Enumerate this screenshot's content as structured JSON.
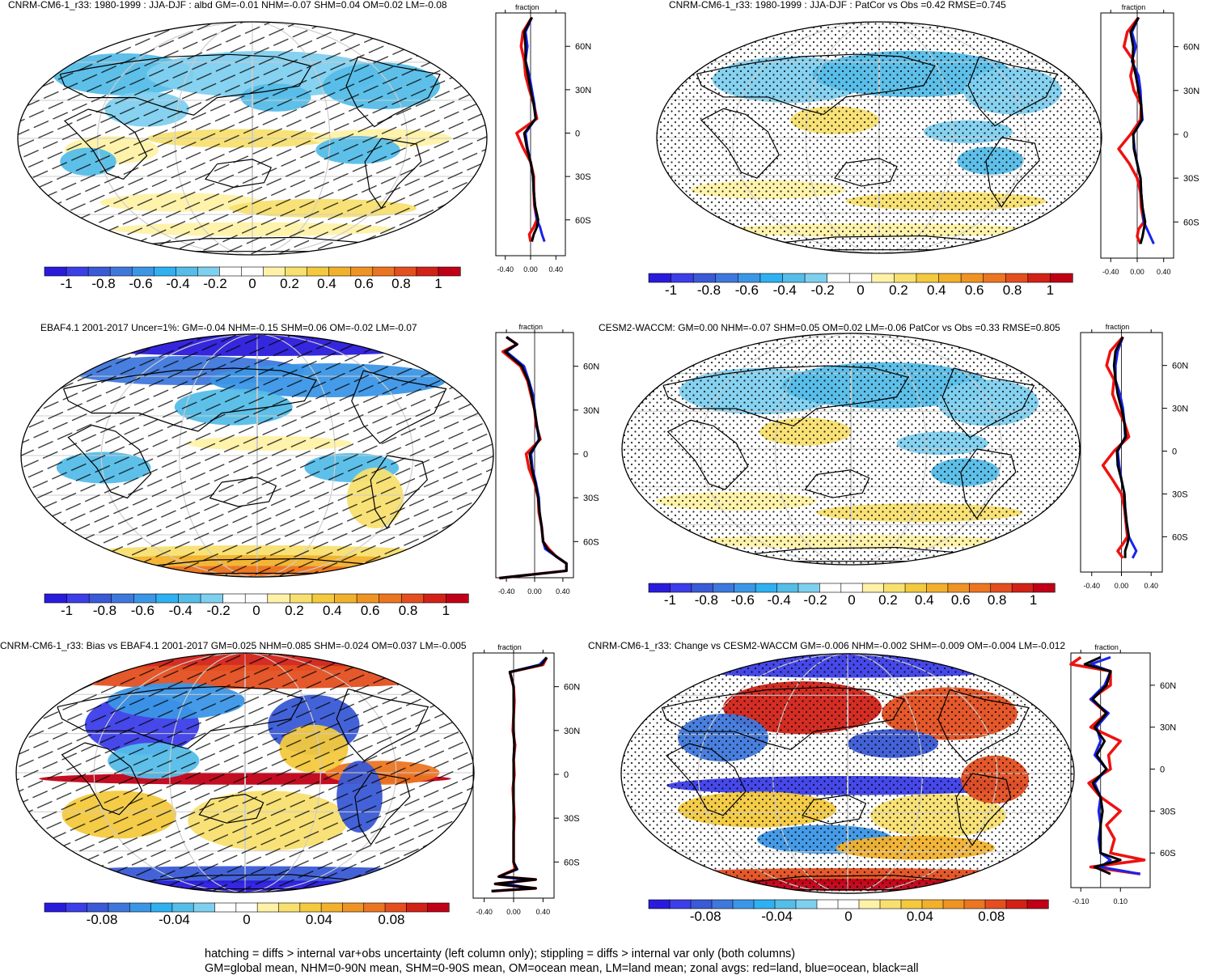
{
  "palette": [
    "#2a1bdc",
    "#3c3ee8",
    "#3a5ad6",
    "#3f78dc",
    "#3b96e6",
    "#2fb0f0",
    "#55bde8",
    "#7fd0ef",
    "#ffffff",
    "#ffffff",
    "#fff2a8",
    "#f8e070",
    "#f3c93e",
    "#f2b12d",
    "#ef9424",
    "#ec7522",
    "#e44f20",
    "#d22218",
    "#c00016"
  ],
  "colorbar_ticks_main": [
    "-1",
    "-0.8",
    "-0.6",
    "-0.4",
    "-0.2",
    "0",
    "0.2",
    "0.4",
    "0.6",
    "0.8",
    "1"
  ],
  "colorbar_ticks_diff": [
    "-0.08",
    "-0.04",
    "0",
    "0.04",
    "0.08"
  ],
  "zonal_colors": {
    "land": "#ee1111",
    "ocean": "#1a22ee",
    "all": "#000000"
  },
  "caption": {
    "line1": "hatching = diffs > internal var+obs uncertainty (left column only); stippling = diffs > internal var only (both columns)",
    "line2": "GM=global mean, NHM=0-90N mean, SHM=0-90S mean, OM=ocean mean, LM=land mean; zonal avgs: red=land, blue=ocean, black=all"
  },
  "chart_data": [
    {
      "type": "heatmap",
      "title": "CNRM-CM6-1_r33: 1980-1999 : JJA-DJF : albd GM=-0.01 NHM=-0.07 SHM=0.04 OM=0.02 LM=-0.08",
      "overlay": "hatching",
      "colorbar_ticks": "main",
      "colorbar_range": [
        -1,
        1
      ],
      "zonal_avg": {
        "title": "fraction",
        "xticks": [
          "-0.40",
          "0.00",
          "0.40"
        ],
        "xlim": [
          -0.55,
          0.55
        ],
        "yticks": [
          "60N",
          "30N",
          "0",
          "30S",
          "60S"
        ],
        "lat": [
          80,
          70,
          60,
          50,
          40,
          30,
          20,
          10,
          0,
          -10,
          -20,
          -30,
          -40,
          -50,
          -60,
          -65,
          -70,
          -75
        ],
        "land": [
          0.02,
          -0.12,
          -0.15,
          -0.1,
          -0.08,
          -0.02,
          0.05,
          0.1,
          -0.22,
          -0.12,
          0,
          0.05,
          0.05,
          0.06,
          0.1,
          0.05,
          -0.02,
          0.0
        ],
        "ocean": [
          0.02,
          -0.08,
          -0.05,
          -0.08,
          -0.02,
          0.02,
          0.06,
          0.08,
          -0.08,
          -0.05,
          0,
          0.04,
          0.05,
          0.07,
          0.1,
          0.15,
          0.18,
          0.22
        ],
        "all": [
          0.02,
          -0.1,
          -0.08,
          -0.08,
          -0.04,
          0.0,
          0.05,
          0.08,
          -0.1,
          -0.06,
          0,
          0.04,
          0.05,
          0.07,
          0.12,
          0.1,
          0.05,
          0.02
        ]
      }
    },
    {
      "type": "heatmap",
      "title": "CNRM-CM6-1_r33: 1980-1999 : JJA-DJF : PatCor vs Obs =0.42 RMSE=0.745",
      "overlay": "stippling",
      "colorbar_ticks": "main",
      "colorbar_range": [
        -1,
        1
      ],
      "zonal_avg": {
        "title": "fraction",
        "xticks": [
          "-0.40",
          "0.00",
          "0.40"
        ],
        "xlim": [
          -0.55,
          0.55
        ],
        "yticks": [
          "60N",
          "30N",
          "0",
          "30S",
          "60S"
        ],
        "lat": [
          80,
          70,
          60,
          50,
          40,
          30,
          20,
          10,
          0,
          -10,
          -20,
          -30,
          -40,
          -50,
          -60,
          -65,
          -70,
          -75
        ],
        "land": [
          0.02,
          -0.15,
          -0.2,
          -0.05,
          -0.1,
          -0.05,
          0.06,
          0.05,
          -0.1,
          -0.28,
          -0.12,
          0,
          0.05,
          0.06,
          0.1,
          0.02,
          0.0,
          0.05
        ],
        "ocean": [
          0.02,
          -0.08,
          -0.02,
          -0.08,
          0.02,
          0.05,
          0.06,
          0.08,
          -0.06,
          -0.04,
          0,
          0.05,
          0.06,
          0.08,
          0.1,
          0.15,
          0.2,
          0.25
        ],
        "all": [
          0.02,
          -0.1,
          -0.06,
          -0.07,
          -0.02,
          0.02,
          0.06,
          0.07,
          -0.06,
          -0.05,
          0,
          0.05,
          0.06,
          0.08,
          0.12,
          0.1,
          0.08,
          0.05
        ]
      }
    },
    {
      "type": "heatmap",
      "title": "EBAF4.1 2001-2017 Uncer=1%: GM=-0.04 NHM=-0.15 SHM=0.06 OM=-0.02 LM=-0.07",
      "overlay": "hatching",
      "colorbar_ticks": "main",
      "colorbar_range": [
        -1,
        1
      ],
      "zonal_avg": {
        "title": "fraction",
        "xticks": [
          "-0.40",
          "0.00",
          "0.40"
        ],
        "xlim": [
          -0.55,
          0.55
        ],
        "yticks": [
          "60N",
          "30N",
          "0",
          "30S",
          "60S"
        ],
        "lat": [
          80,
          75,
          70,
          60,
          50,
          40,
          30,
          20,
          10,
          0,
          -10,
          -20,
          -30,
          -40,
          -50,
          -60,
          -65,
          -70,
          -75,
          -80,
          -85
        ],
        "land": [
          -0.4,
          -0.25,
          -0.45,
          -0.2,
          -0.1,
          -0.05,
          0,
          0.02,
          0.08,
          -0.12,
          -0.08,
          0,
          0.05,
          0.06,
          0.1,
          0.12,
          0.2,
          0.3,
          0.45,
          0.45,
          -0.5
        ],
        "ocean": [
          -0.4,
          -0.25,
          -0.4,
          -0.15,
          -0.08,
          -0.02,
          0,
          0.03,
          0.06,
          -0.05,
          -0.03,
          0.02,
          0.06,
          0.07,
          0.1,
          0.12,
          0.15,
          0.3,
          0.45,
          0.45,
          -0.5
        ],
        "all": [
          -0.4,
          -0.25,
          -0.42,
          -0.18,
          -0.09,
          -0.04,
          0,
          0.03,
          0.07,
          -0.07,
          -0.04,
          0.01,
          0.05,
          0.07,
          0.1,
          0.12,
          0.18,
          0.3,
          0.45,
          0.45,
          -0.5
        ]
      }
    },
    {
      "type": "heatmap",
      "title": "CESM2-WACCM: GM=0.00 NHM=-0.07 SHM=0.05 OM=0.02 LM=-0.06 PatCor vs Obs =0.33 RMSE=0.805",
      "overlay": "stippling",
      "colorbar_ticks": "main",
      "colorbar_range": [
        -1,
        1
      ],
      "zonal_avg": {
        "title": "fraction",
        "xticks": [
          "-0.40",
          "0.00",
          "0.40"
        ],
        "xlim": [
          -0.55,
          0.55
        ],
        "yticks": [
          "60N",
          "30N",
          "0",
          "30S",
          "60S"
        ],
        "lat": [
          80,
          70,
          60,
          50,
          40,
          30,
          20,
          10,
          0,
          -10,
          -20,
          -30,
          -40,
          -50,
          -60,
          -65,
          -70,
          -75
        ],
        "land": [
          0.02,
          -0.15,
          -0.2,
          -0.1,
          -0.12,
          -0.05,
          0.04,
          0.1,
          -0.1,
          -0.25,
          -0.12,
          0,
          0.04,
          0.06,
          0.08,
          0.02,
          -0.05,
          0.02
        ],
        "ocean": [
          0.02,
          -0.05,
          -0.08,
          -0.08,
          -0.02,
          0.02,
          0.04,
          0.05,
          -0.05,
          -0.03,
          0,
          0.04,
          0.05,
          0.07,
          0.1,
          0.15,
          0.2,
          0.15
        ],
        "all": [
          0.02,
          -0.08,
          -0.1,
          -0.08,
          -0.05,
          0.0,
          0.04,
          0.06,
          -0.06,
          -0.05,
          0,
          0.04,
          0.05,
          0.07,
          0.1,
          0.08,
          0.05,
          0.05
        ]
      }
    },
    {
      "type": "heatmap",
      "title": "CNRM-CM6-1_r33: Bias vs EBAF4.1 2001-2017 GM=0.025 NHM=0.085 SHM=-0.024 OM=0.037 LM=-0.005",
      "overlay": "hatching",
      "colorbar_ticks": "diff",
      "colorbar_range": [
        -0.1,
        0.1
      ],
      "zonal_avg": {
        "title": "fraction",
        "xticks": [
          "-0.40",
          "0.00",
          "0.40"
        ],
        "xlim": [
          -0.55,
          0.55
        ],
        "yticks": [
          "60N",
          "30N",
          "0",
          "30S",
          "60S"
        ],
        "lat": [
          80,
          75,
          70,
          60,
          50,
          40,
          30,
          20,
          10,
          0,
          -10,
          -20,
          -30,
          -40,
          -50,
          -60,
          -65,
          -70,
          -72,
          -75,
          -78,
          -80
        ],
        "land": [
          0.45,
          0.4,
          -0.05,
          0,
          0.01,
          0,
          -0.01,
          0.02,
          0.0,
          0.01,
          -0.01,
          0.0,
          0.01,
          0.0,
          0.0,
          0,
          0.02,
          -0.2,
          0.3,
          -0.25,
          0.3,
          -0.3
        ],
        "ocean": [
          0.45,
          0.35,
          -0.05,
          0,
          0.0,
          0,
          0.0,
          0.01,
          0.0,
          0.0,
          0.0,
          0.0,
          0.0,
          0.0,
          0.0,
          0,
          0.05,
          -0.2,
          0.15,
          -0.1,
          0.25,
          -0.3
        ],
        "all": [
          0.45,
          0.38,
          -0.05,
          0,
          0.0,
          0,
          0.0,
          0.01,
          0.0,
          0.0,
          0.0,
          0.0,
          0.0,
          0.0,
          0.0,
          0,
          0.04,
          -0.2,
          0.3,
          -0.25,
          0.3,
          -0.3
        ]
      }
    },
    {
      "type": "heatmap",
      "title": "CNRM-CM6-1_r33: Change vs CESM2-WACCM GM=-0.006 NHM=-0.002 SHM=-0.009 OM=-0.004 LM=-0.012",
      "overlay": "stippling",
      "colorbar_ticks": "diff",
      "colorbar_range": [
        -0.1,
        0.1
      ],
      "zonal_avg": {
        "title": "fraction",
        "xticks": [
          "-0.10",
          "0.10"
        ],
        "xlim": [
          -0.15,
          0.25
        ],
        "yticks": [
          "60N",
          "30N",
          "0",
          "30S",
          "60S"
        ],
        "lat": [
          80,
          75,
          70,
          60,
          50,
          40,
          30,
          20,
          10,
          0,
          -10,
          -20,
          -30,
          -40,
          -50,
          -60,
          -65,
          -70,
          -75
        ],
        "land": [
          -0.1,
          -0.15,
          0.05,
          0.05,
          -0.05,
          0.03,
          -0.05,
          0.1,
          0.04,
          0.05,
          -0.06,
          0.0,
          0.1,
          0.03,
          0.07,
          0.05,
          0.22,
          -0.05,
          0.2
        ],
        "ocean": [
          0.05,
          -0.05,
          0.05,
          0.02,
          -0.05,
          0.04,
          -0.02,
          0.0,
          -0.03,
          0.03,
          -0.03,
          0.0,
          -0.01,
          0.0,
          -0.01,
          0.0,
          0.05,
          0.0,
          0.2
        ],
        "all": [
          0.0,
          -0.08,
          0.05,
          0.03,
          -0.04,
          0.03,
          -0.03,
          0.02,
          -0.02,
          0.03,
          -0.04,
          0.0,
          0.01,
          0.0,
          0.0,
          0.0,
          0.1,
          -0.03,
          0.05
        ]
      }
    }
  ]
}
